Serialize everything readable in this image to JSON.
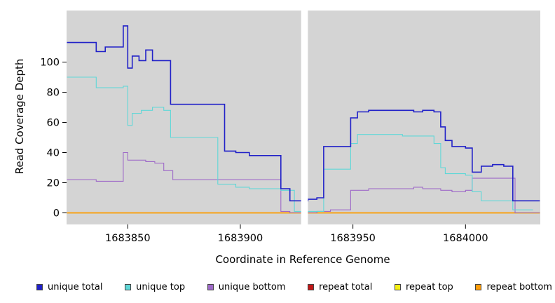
{
  "figure": {
    "background": "#ffffff",
    "plot_background": "#d4d4d4",
    "gap_color": "#ffffff"
  },
  "chart_data": {
    "type": "line",
    "subtype": "step",
    "title": "",
    "xlabel": "Coordinate in Reference Genome",
    "ylabel": "Read Coverage Depth",
    "xlim": [
      1683823,
      1684033
    ],
    "ylim": [
      0,
      120
    ],
    "x_ticks": [
      1683850,
      1683900,
      1683950,
      1684000
    ],
    "y_ticks": [
      0,
      20,
      40,
      60,
      80,
      100
    ],
    "grid": false,
    "legend_position": "bottom",
    "gap": {
      "x_start": 1683927,
      "x_end": 1683930
    },
    "series": [
      {
        "name": "unique total",
        "color": "#2121c8",
        "points": [
          [
            1683823,
            113
          ],
          [
            1683836,
            107
          ],
          [
            1683840,
            110
          ],
          [
            1683848,
            124
          ],
          [
            1683850,
            96
          ],
          [
            1683852,
            104
          ],
          [
            1683855,
            101
          ],
          [
            1683858,
            108
          ],
          [
            1683861,
            101
          ],
          [
            1683869,
            72
          ],
          [
            1683893,
            41
          ],
          [
            1683898,
            40
          ],
          [
            1683904,
            38
          ],
          [
            1683918,
            16
          ],
          [
            1683922,
            8
          ],
          [
            1683930,
            9
          ],
          [
            1683934,
            10
          ],
          [
            1683937,
            44
          ],
          [
            1683949,
            63
          ],
          [
            1683952,
            67
          ],
          [
            1683957,
            68
          ],
          [
            1683977,
            67
          ],
          [
            1683981,
            68
          ],
          [
            1683986,
            67
          ],
          [
            1683989,
            57
          ],
          [
            1683991,
            48
          ],
          [
            1683994,
            44
          ],
          [
            1684000,
            43
          ],
          [
            1684003,
            27
          ],
          [
            1684007,
            31
          ],
          [
            1684012,
            32
          ],
          [
            1684017,
            31
          ],
          [
            1684021,
            8
          ],
          [
            1684033,
            8
          ]
        ]
      },
      {
        "name": "unique top",
        "color": "#5fd7d7",
        "points": [
          [
            1683823,
            90
          ],
          [
            1683836,
            83
          ],
          [
            1683848,
            84
          ],
          [
            1683850,
            58
          ],
          [
            1683852,
            66
          ],
          [
            1683856,
            68
          ],
          [
            1683861,
            70
          ],
          [
            1683866,
            68
          ],
          [
            1683869,
            50
          ],
          [
            1683890,
            19
          ],
          [
            1683898,
            17
          ],
          [
            1683904,
            16
          ],
          [
            1683918,
            15
          ],
          [
            1683924,
            1
          ],
          [
            1683934,
            1
          ],
          [
            1683937,
            29
          ],
          [
            1683949,
            46
          ],
          [
            1683952,
            52
          ],
          [
            1683972,
            51
          ],
          [
            1683986,
            46
          ],
          [
            1683989,
            30
          ],
          [
            1683991,
            26
          ],
          [
            1684000,
            25
          ],
          [
            1684003,
            14
          ],
          [
            1684007,
            8
          ],
          [
            1684021,
            2
          ],
          [
            1684030,
            2
          ]
        ]
      },
      {
        "name": "unique bottom",
        "color": "#9e6ac8",
        "points": [
          [
            1683823,
            22
          ],
          [
            1683836,
            21
          ],
          [
            1683848,
            40
          ],
          [
            1683850,
            35
          ],
          [
            1683858,
            34
          ],
          [
            1683862,
            33
          ],
          [
            1683866,
            28
          ],
          [
            1683870,
            22
          ],
          [
            1683918,
            1
          ],
          [
            1683922,
            0
          ],
          [
            1683934,
            1
          ],
          [
            1683940,
            2
          ],
          [
            1683949,
            15
          ],
          [
            1683957,
            16
          ],
          [
            1683977,
            17
          ],
          [
            1683981,
            16
          ],
          [
            1683989,
            15
          ],
          [
            1683994,
            14
          ],
          [
            1684000,
            15
          ],
          [
            1684003,
            23
          ],
          [
            1684020,
            23
          ],
          [
            1684022,
            0
          ],
          [
            1684033,
            0
          ]
        ]
      },
      {
        "name": "repeat total",
        "color": "#c01717",
        "points": [
          [
            1683823,
            0
          ],
          [
            1684033,
            0
          ]
        ]
      },
      {
        "name": "repeat top",
        "color": "#f5ef13",
        "points": [
          [
            1683823,
            0
          ],
          [
            1684033,
            0
          ]
        ]
      },
      {
        "name": "repeat bottom",
        "color": "#ff9d0a",
        "points": [
          [
            1683823,
            0
          ],
          [
            1684033,
            0
          ]
        ]
      }
    ]
  }
}
